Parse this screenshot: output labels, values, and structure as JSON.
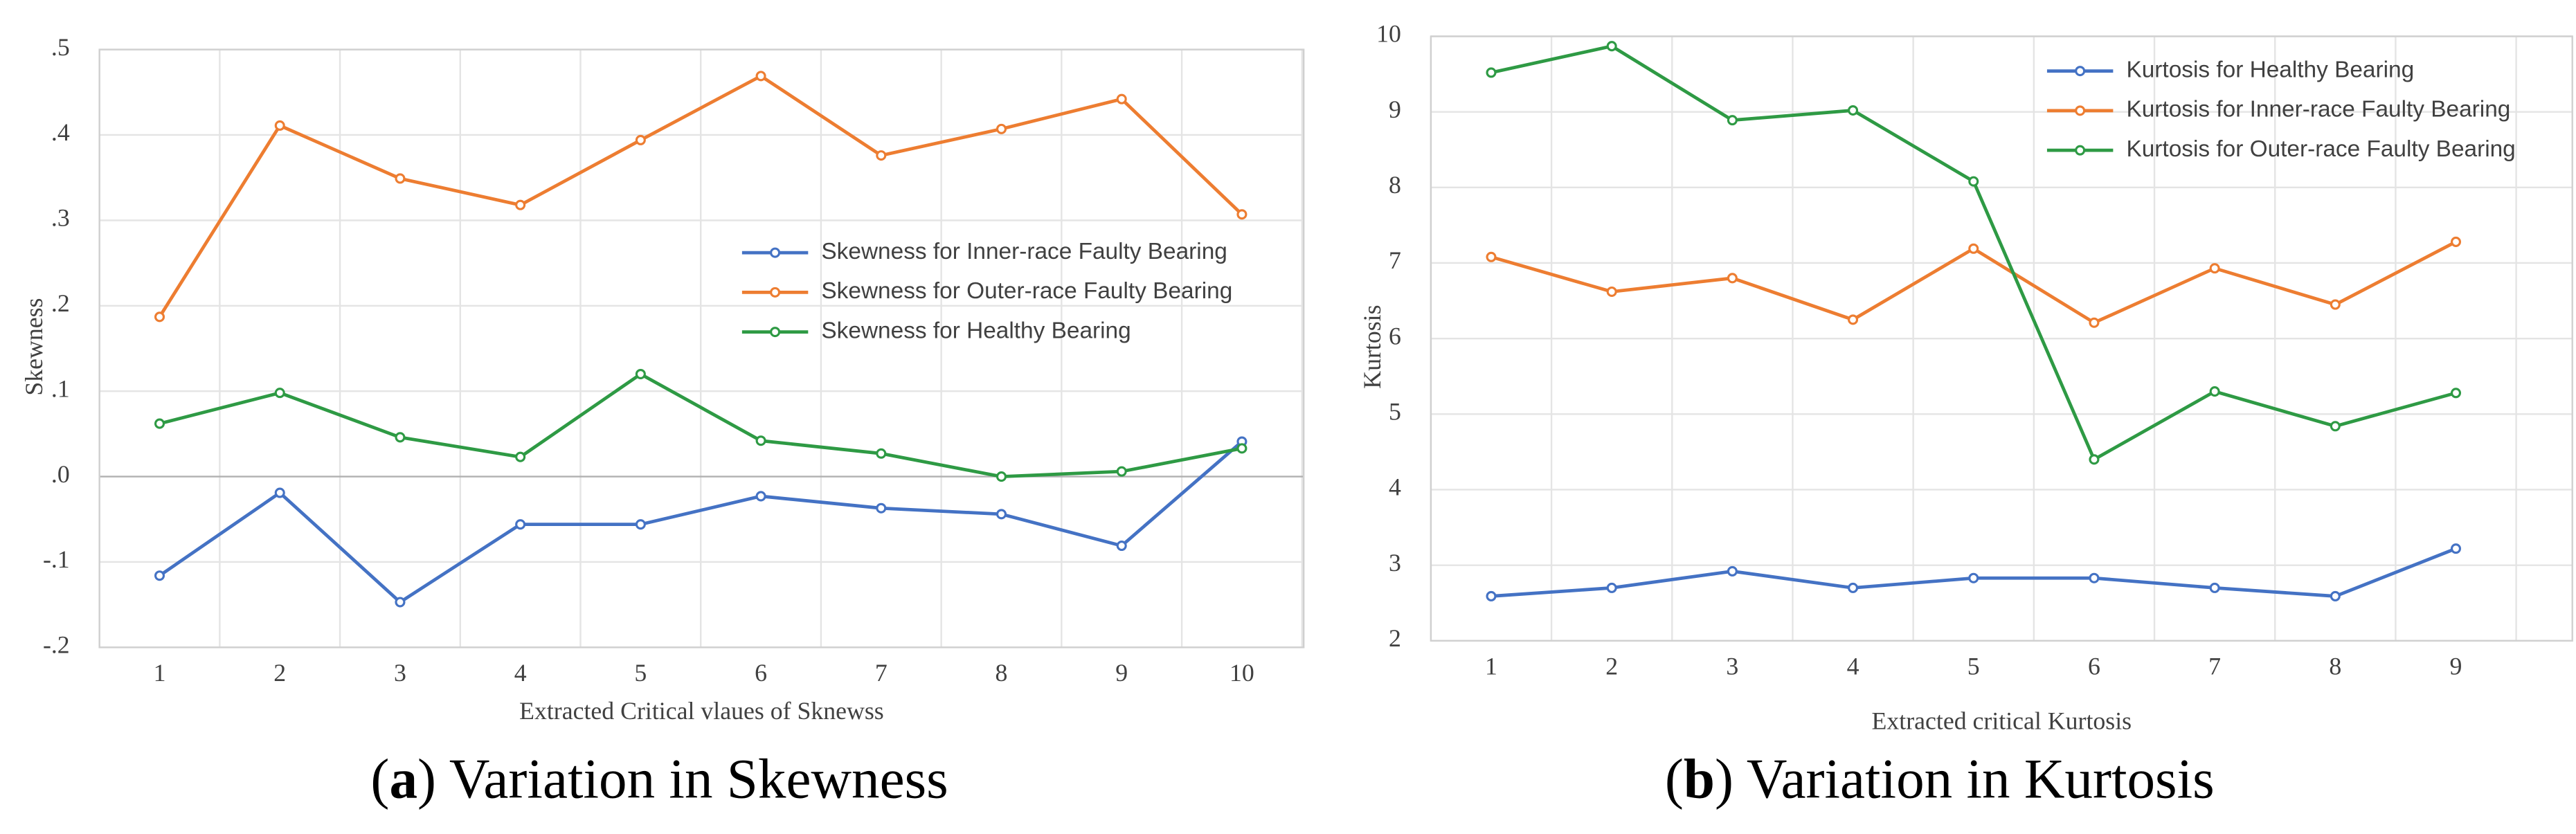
{
  "chart_data": [
    {
      "type": "line",
      "x_label": "Extracted Critical vlaues of Sknewss",
      "y_label": "Skewness",
      "caption": [
        "(",
        "a",
        ") Variation in Skewness"
      ],
      "categories": [
        "1",
        "2",
        "3",
        "4",
        "5",
        "6",
        "7",
        "8",
        "9",
        "10"
      ],
      "ylim": [
        -0.2,
        0.5
      ],
      "yticks": [
        {
          "value": -0.2,
          "label": "-.2"
        },
        {
          "value": -0.1,
          "label": "-.1"
        },
        {
          "value": 0,
          "label": ".0"
        },
        {
          "value": 0.1,
          "label": ".1"
        },
        {
          "value": 0.2,
          "label": ".2"
        },
        {
          "value": 0.3,
          "label": ".3"
        },
        {
          "value": 0.4,
          "label": ".4"
        },
        {
          "value": 0.5,
          "label": ".5"
        }
      ],
      "grid": true,
      "legend": "right",
      "series": [
        {
          "name": "Skewness for Inner-race Faulty Bearing",
          "color": "#4472c4",
          "values": [
            -0.116,
            -0.019,
            -0.147,
            -0.056,
            -0.056,
            -0.023,
            -0.037,
            -0.044,
            -0.081,
            0.041
          ]
        },
        {
          "name": "Skewness for Outer-race Faulty Bearing",
          "color": "#ed7d31",
          "values": [
            0.187,
            0.411,
            0.349,
            0.318,
            0.394,
            0.469,
            0.376,
            0.407,
            0.442,
            0.307
          ]
        },
        {
          "name": "Skewness for Healthy Bearing",
          "color": "#2e9a44",
          "values": [
            0.062,
            0.098,
            0.046,
            0.023,
            0.12,
            0.042,
            0.027,
            0.0,
            0.006,
            0.033
          ]
        }
      ]
    },
    {
      "type": "line",
      "x_label": "Extracted critical Kurtosis",
      "y_label": "Kurtosis",
      "caption": [
        "(",
        "b",
        ") Variation in Kurtosis"
      ],
      "categories": [
        "1",
        "2",
        "3",
        "4",
        "5",
        "6",
        "7",
        "8",
        "9"
      ],
      "ylim": [
        2,
        10
      ],
      "yticks": [
        2,
        3,
        4,
        5,
        6,
        7,
        8,
        9,
        10
      ],
      "grid": true,
      "legend": "top-right",
      "series": [
        {
          "name": "Kurtosis for Healthy Bearing",
          "color": "#4472c4",
          "values": [
            2.59,
            2.7,
            2.92,
            2.7,
            2.83,
            2.83,
            2.7,
            2.59,
            3.22
          ]
        },
        {
          "name": "Kurtosis for Inner-race Faulty Bearing",
          "color": "#ed7d31",
          "values": [
            7.08,
            6.62,
            6.8,
            6.25,
            7.19,
            6.21,
            6.93,
            6.45,
            7.28
          ]
        },
        {
          "name": "Kurtosis for Outer-race Faulty Bearing",
          "color": "#2e9a44",
          "values": [
            9.52,
            9.87,
            8.89,
            9.02,
            8.08,
            4.4,
            5.3,
            4.84,
            5.28
          ]
        }
      ]
    }
  ]
}
